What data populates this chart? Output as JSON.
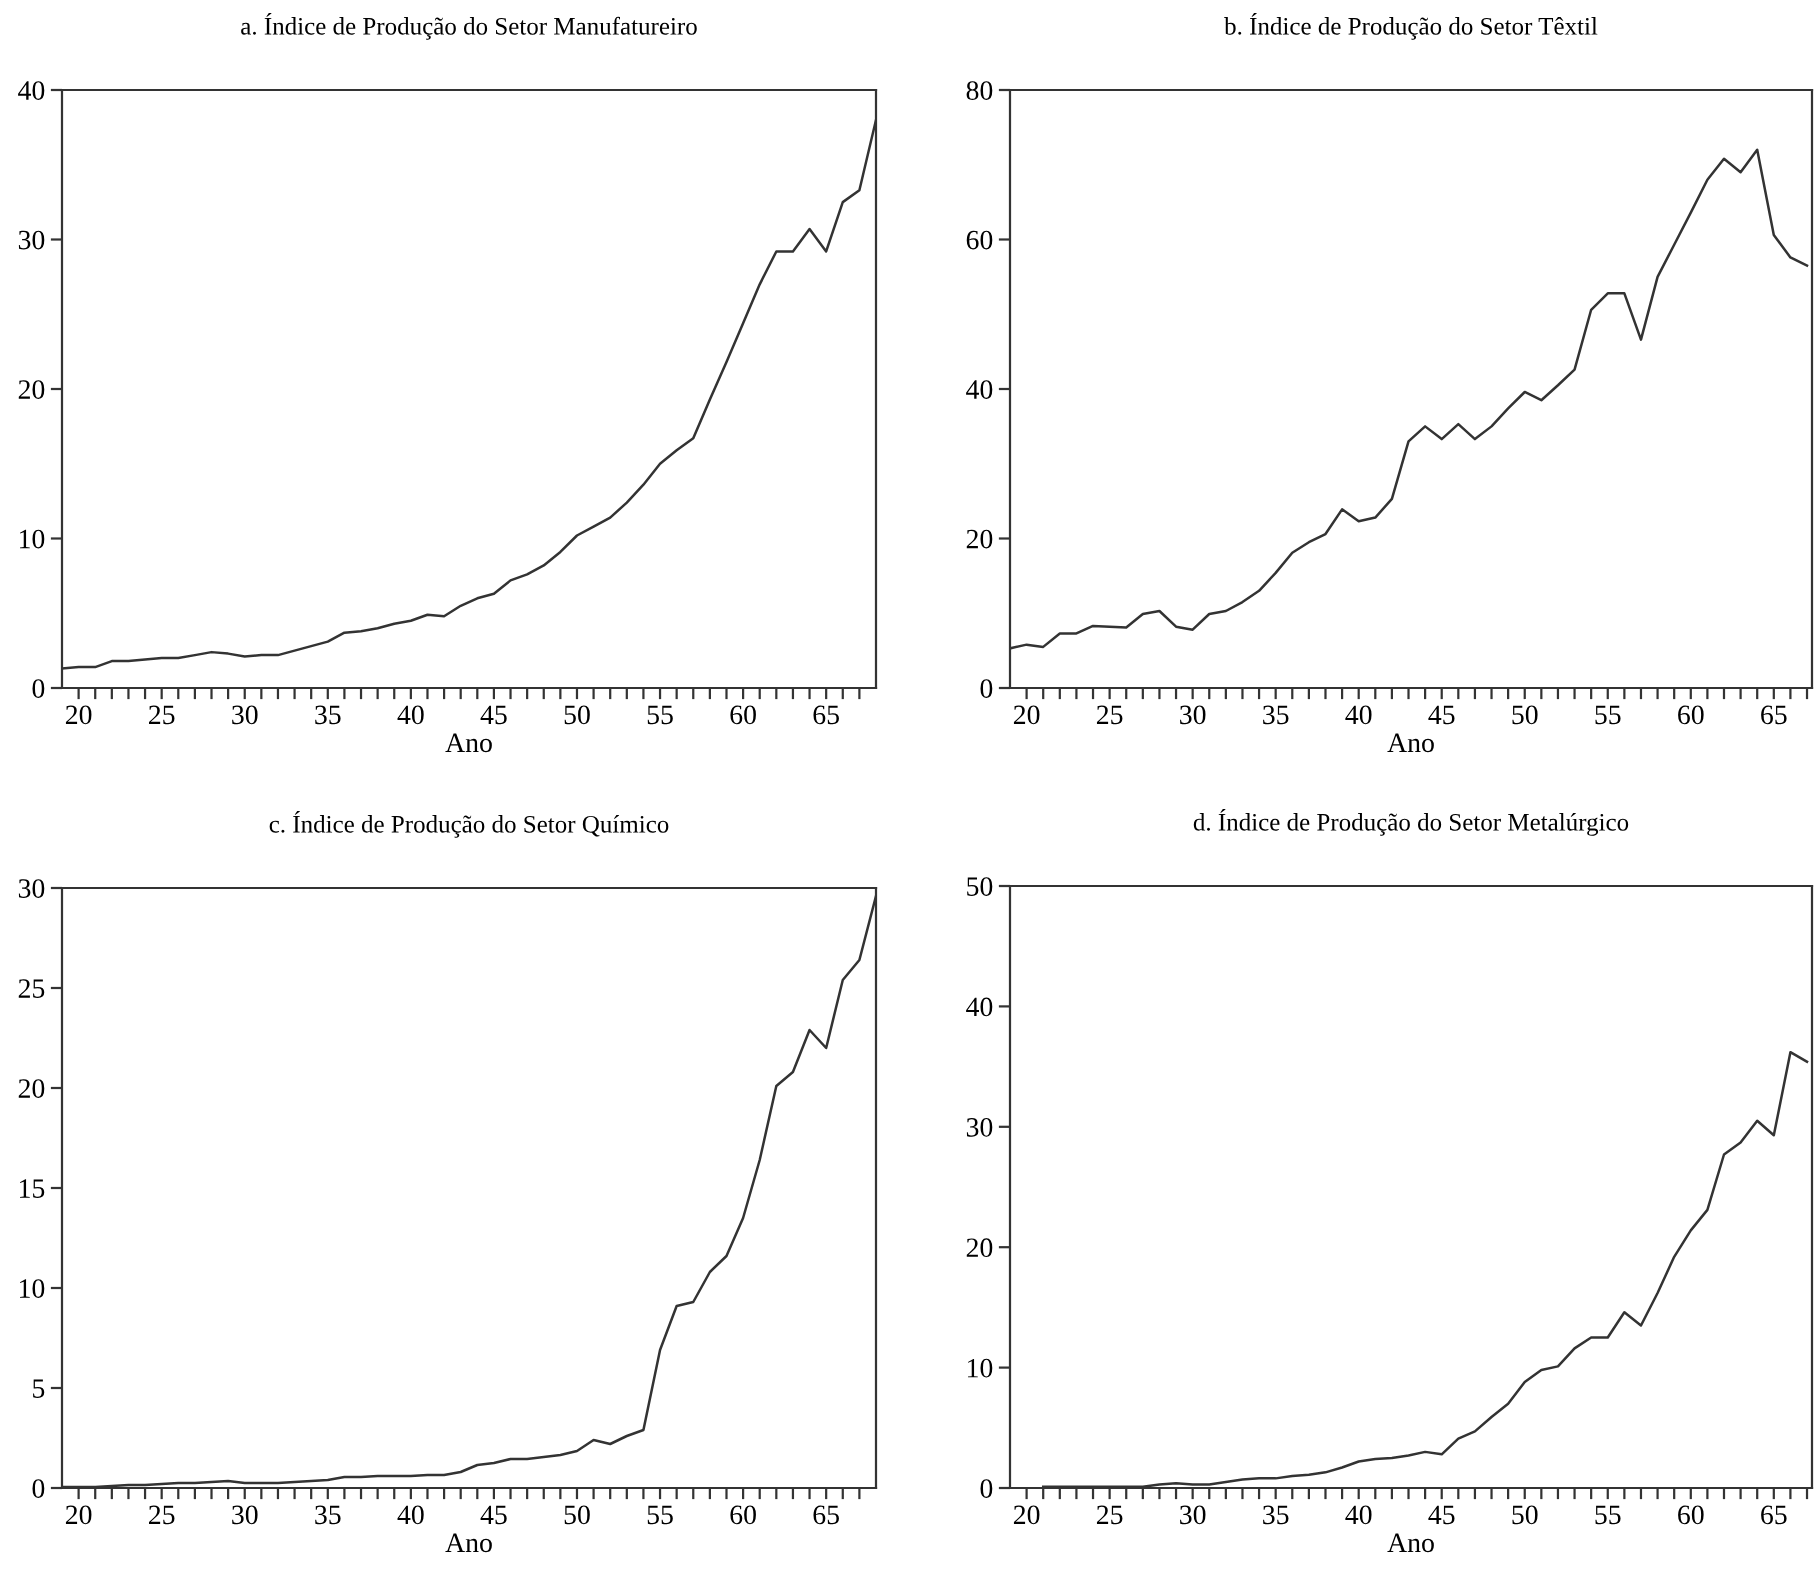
{
  "chart_data": [
    {
      "type": "line",
      "title": "a. Índice de Produção do Setor Manufatureiro",
      "xlabel": "Ano",
      "x": [
        19,
        20,
        21,
        22,
        23,
        24,
        25,
        26,
        27,
        28,
        29,
        30,
        31,
        32,
        33,
        34,
        35,
        36,
        37,
        38,
        39,
        40,
        41,
        42,
        43,
        44,
        45,
        46,
        47,
        48,
        49,
        50,
        51,
        52,
        53,
        54,
        55,
        56,
        57,
        58,
        59,
        60,
        61,
        62,
        63,
        64,
        65,
        66,
        67,
        68
      ],
      "series": [
        {
          "color": "#333333",
          "values": [
            1.3,
            1.4,
            1.4,
            1.8,
            1.8,
            1.9,
            2.0,
            2.0,
            2.2,
            2.4,
            2.3,
            2.1,
            2.2,
            2.2,
            2.5,
            2.8,
            3.1,
            3.7,
            3.8,
            4.0,
            4.3,
            4.5,
            4.9,
            4.8,
            5.5,
            6.0,
            6.3,
            7.2,
            7.6,
            8.2,
            9.1,
            10.2,
            10.8,
            11.4,
            12.4,
            13.6,
            15.0,
            15.9,
            16.7,
            19.3,
            21.8,
            24.4,
            27.0,
            29.2,
            29.2,
            30.7,
            29.2,
            32.5,
            33.3,
            38.0
          ]
        }
      ],
      "xlim": [
        19,
        68
      ],
      "ylim": [
        0,
        40
      ],
      "yticks": [
        0,
        10,
        20,
        30,
        40
      ],
      "xticks": [
        20,
        {
          "value": 21,
          "label": null
        },
        {
          "value": 22,
          "label": null
        },
        {
          "value": 23,
          "label": null
        },
        {
          "value": 24,
          "label": null
        },
        25,
        {
          "value": 26,
          "label": null
        },
        {
          "value": 27,
          "label": null
        },
        {
          "value": 28,
          "label": null
        },
        {
          "value": 29,
          "label": null
        },
        30,
        {
          "value": 31,
          "label": null
        },
        {
          "value": 32,
          "label": null
        },
        {
          "value": 33,
          "label": null
        },
        {
          "value": 34,
          "label": null
        },
        35,
        {
          "value": 36,
          "label": null
        },
        {
          "value": 37,
          "label": null
        },
        {
          "value": 38,
          "label": null
        },
        {
          "value": 39,
          "label": null
        },
        40,
        {
          "value": 41,
          "label": null
        },
        {
          "value": 42,
          "label": null
        },
        {
          "value": 43,
          "label": null
        },
        {
          "value": 44,
          "label": null
        },
        45,
        {
          "value": 46,
          "label": null
        },
        {
          "value": 47,
          "label": null
        },
        {
          "value": 48,
          "label": null
        },
        {
          "value": 49,
          "label": null
        },
        50,
        {
          "value": 51,
          "label": null
        },
        {
          "value": 52,
          "label": null
        },
        {
          "value": 53,
          "label": null
        },
        {
          "value": 54,
          "label": null
        },
        55,
        {
          "value": 56,
          "label": null
        },
        {
          "value": 57,
          "label": null
        },
        {
          "value": 58,
          "label": null
        },
        {
          "value": 59,
          "label": null
        },
        60,
        {
          "value": 61,
          "label": null
        },
        {
          "value": 62,
          "label": null
        },
        {
          "value": 63,
          "label": null
        },
        {
          "value": 64,
          "label": null
        },
        65,
        {
          "value": 66,
          "label": null
        },
        {
          "value": 67,
          "label": null
        }
      ],
      "grid": false,
      "legend": false
    },
    {
      "type": "line",
      "title": "b. Índice de Produção do Setor Têxtil",
      "xlabel": "Ano",
      "x": [
        19,
        20,
        21,
        22,
        23,
        24,
        25,
        26,
        27,
        28,
        29,
        30,
        31,
        32,
        33,
        34,
        35,
        36,
        37,
        38,
        39,
        40,
        41,
        42,
        43,
        44,
        45,
        46,
        47,
        48,
        49,
        50,
        51,
        52,
        53,
        54,
        55,
        56,
        57,
        58,
        59,
        60,
        61,
        62,
        63,
        64,
        65,
        66,
        67
      ],
      "series": [
        {
          "color": "#333333",
          "values": [
            5.3,
            5.8,
            5.5,
            7.3,
            7.3,
            8.3,
            8.2,
            8.1,
            9.9,
            10.3,
            8.2,
            7.8,
            9.9,
            10.3,
            11.5,
            13,
            15.4,
            18.1,
            19.5,
            20.6,
            23.9,
            22.3,
            22.8,
            25.3,
            33,
            35,
            33.3,
            35.3,
            33.3,
            35,
            37.4,
            39.6,
            38.5,
            40.5,
            42.6,
            50.6,
            52.8,
            52.8,
            46.6,
            55,
            59.3,
            63.6,
            68,
            70.8,
            69,
            72,
            60.6,
            57.6,
            56.5
          ]
        }
      ],
      "xlim": [
        19,
        67.3
      ],
      "ylim": [
        0,
        80
      ],
      "yticks": [
        0,
        20,
        40,
        60,
        80
      ],
      "xticks": [
        20,
        {
          "value": 21,
          "label": null
        },
        {
          "value": 22,
          "label": null
        },
        {
          "value": 23,
          "label": null
        },
        {
          "value": 24,
          "label": null
        },
        25,
        {
          "value": 26,
          "label": null
        },
        {
          "value": 27,
          "label": null
        },
        {
          "value": 28,
          "label": null
        },
        {
          "value": 29,
          "label": null
        },
        30,
        {
          "value": 31,
          "label": null
        },
        {
          "value": 32,
          "label": null
        },
        {
          "value": 33,
          "label": null
        },
        {
          "value": 34,
          "label": null
        },
        35,
        {
          "value": 36,
          "label": null
        },
        {
          "value": 37,
          "label": null
        },
        {
          "value": 38,
          "label": null
        },
        {
          "value": 39,
          "label": null
        },
        40,
        {
          "value": 41,
          "label": null
        },
        {
          "value": 42,
          "label": null
        },
        {
          "value": 43,
          "label": null
        },
        {
          "value": 44,
          "label": null
        },
        45,
        {
          "value": 46,
          "label": null
        },
        {
          "value": 47,
          "label": null
        },
        {
          "value": 48,
          "label": null
        },
        {
          "value": 49,
          "label": null
        },
        50,
        {
          "value": 51,
          "label": null
        },
        {
          "value": 52,
          "label": null
        },
        {
          "value": 53,
          "label": null
        },
        {
          "value": 54,
          "label": null
        },
        55,
        {
          "value": 56,
          "label": null
        },
        {
          "value": 57,
          "label": null
        },
        {
          "value": 58,
          "label": null
        },
        {
          "value": 59,
          "label": null
        },
        60,
        {
          "value": 61,
          "label": null
        },
        {
          "value": 62,
          "label": null
        },
        {
          "value": 63,
          "label": null
        },
        {
          "value": 64,
          "label": null
        },
        65,
        {
          "value": 66,
          "label": null
        },
        {
          "value": 67,
          "label": null
        }
      ],
      "grid": false,
      "legend": false
    },
    {
      "type": "line",
      "title": "c. Índice de Produção do Setor Químico",
      "xlabel": "Ano",
      "x": [
        19,
        20,
        21,
        22,
        23,
        24,
        25,
        26,
        27,
        28,
        29,
        30,
        31,
        32,
        33,
        34,
        35,
        36,
        37,
        38,
        39,
        40,
        41,
        42,
        43,
        44,
        45,
        46,
        47,
        48,
        49,
        50,
        51,
        52,
        53,
        54,
        55,
        56,
        57,
        58,
        59,
        60,
        61,
        62,
        63,
        64,
        65,
        66,
        67,
        68
      ],
      "series": [
        {
          "color": "#333333",
          "values": [
            0.05,
            0.05,
            0.05,
            0.1,
            0.15,
            0.15,
            0.2,
            0.25,
            0.25,
            0.3,
            0.35,
            0.25,
            0.25,
            0.25,
            0.3,
            0.35,
            0.4,
            0.55,
            0.55,
            0.6,
            0.6,
            0.6,
            0.65,
            0.65,
            0.8,
            1.15,
            1.25,
            1.45,
            1.45,
            1.55,
            1.65,
            1.85,
            2.4,
            2.2,
            2.6,
            2.9,
            6.9,
            9.1,
            9.3,
            10.8,
            11.6,
            13.5,
            16.4,
            20.1,
            20.8,
            22.9,
            22.0,
            25.4,
            26.4,
            29.6
          ]
        }
      ],
      "xlim": [
        19,
        68
      ],
      "ylim": [
        0,
        30
      ],
      "yticks": [
        0,
        5,
        10,
        15,
        20,
        25,
        30
      ],
      "xticks": [
        20,
        {
          "value": 21,
          "label": null
        },
        {
          "value": 22,
          "label": null
        },
        {
          "value": 23,
          "label": null
        },
        {
          "value": 24,
          "label": null
        },
        25,
        {
          "value": 26,
          "label": null
        },
        {
          "value": 27,
          "label": null
        },
        {
          "value": 28,
          "label": null
        },
        {
          "value": 29,
          "label": null
        },
        30,
        {
          "value": 31,
          "label": null
        },
        {
          "value": 32,
          "label": null
        },
        {
          "value": 33,
          "label": null
        },
        {
          "value": 34,
          "label": null
        },
        35,
        {
          "value": 36,
          "label": null
        },
        {
          "value": 37,
          "label": null
        },
        {
          "value": 38,
          "label": null
        },
        {
          "value": 39,
          "label": null
        },
        40,
        {
          "value": 41,
          "label": null
        },
        {
          "value": 42,
          "label": null
        },
        {
          "value": 43,
          "label": null
        },
        {
          "value": 44,
          "label": null
        },
        45,
        {
          "value": 46,
          "label": null
        },
        {
          "value": 47,
          "label": null
        },
        {
          "value": 48,
          "label": null
        },
        {
          "value": 49,
          "label": null
        },
        50,
        {
          "value": 51,
          "label": null
        },
        {
          "value": 52,
          "label": null
        },
        {
          "value": 53,
          "label": null
        },
        {
          "value": 54,
          "label": null
        },
        55,
        {
          "value": 56,
          "label": null
        },
        {
          "value": 57,
          "label": null
        },
        {
          "value": 58,
          "label": null
        },
        {
          "value": 59,
          "label": null
        },
        60,
        {
          "value": 61,
          "label": null
        },
        {
          "value": 62,
          "label": null
        },
        {
          "value": 63,
          "label": null
        },
        {
          "value": 64,
          "label": null
        },
        65,
        {
          "value": 66,
          "label": null
        },
        {
          "value": 67,
          "label": null
        }
      ],
      "grid": false,
      "legend": false
    },
    {
      "type": "line",
      "title": "d. Índice de Produção do Setor Metalúrgico",
      "xlabel": "Ano",
      "x": [
        21,
        22,
        23,
        24,
        25,
        26,
        27,
        28,
        29,
        30,
        31,
        32,
        33,
        34,
        35,
        36,
        37,
        38,
        39,
        40,
        41,
        42,
        43,
        44,
        45,
        46,
        47,
        48,
        49,
        50,
        51,
        52,
        53,
        54,
        55,
        56,
        57,
        58,
        59,
        60,
        61,
        62,
        63,
        64,
        65,
        66,
        67
      ],
      "series": [
        {
          "color": "#333333",
          "values": [
            0.1,
            0.1,
            0.1,
            0.1,
            0.1,
            0.1,
            0.1,
            0.3,
            0.4,
            0.3,
            0.3,
            0.5,
            0.7,
            0.8,
            0.8,
            1.0,
            1.1,
            1.3,
            1.7,
            2.2,
            2.4,
            2.5,
            2.7,
            3.0,
            2.8,
            4.1,
            4.7,
            5.9,
            7.0,
            8.8,
            9.8,
            10.1,
            11.6,
            12.5,
            12.5,
            14.6,
            13.5,
            16.2,
            19.2,
            21.4,
            23.1,
            27.7,
            28.7,
            30.5,
            29.3,
            36.2,
            35.4
          ]
        }
      ],
      "xlim": [
        19,
        67.3
      ],
      "ylim": [
        0,
        50
      ],
      "yticks": [
        0,
        10,
        20,
        30,
        40,
        50
      ],
      "xticks": [
        20,
        {
          "value": 21,
          "label": null
        },
        {
          "value": 22,
          "label": null
        },
        {
          "value": 23,
          "label": null
        },
        {
          "value": 24,
          "label": null
        },
        25,
        {
          "value": 26,
          "label": null
        },
        {
          "value": 27,
          "label": null
        },
        {
          "value": 28,
          "label": null
        },
        {
          "value": 29,
          "label": null
        },
        30,
        {
          "value": 31,
          "label": null
        },
        {
          "value": 32,
          "label": null
        },
        {
          "value": 33,
          "label": null
        },
        {
          "value": 34,
          "label": null
        },
        35,
        {
          "value": 36,
          "label": null
        },
        {
          "value": 37,
          "label": null
        },
        {
          "value": 38,
          "label": null
        },
        {
          "value": 39,
          "label": null
        },
        40,
        {
          "value": 41,
          "label": null
        },
        {
          "value": 42,
          "label": null
        },
        {
          "value": 43,
          "label": null
        },
        {
          "value": 44,
          "label": null
        },
        45,
        {
          "value": 46,
          "label": null
        },
        {
          "value": 47,
          "label": null
        },
        {
          "value": 48,
          "label": null
        },
        {
          "value": 49,
          "label": null
        },
        50,
        {
          "value": 51,
          "label": null
        },
        {
          "value": 52,
          "label": null
        },
        {
          "value": 53,
          "label": null
        },
        {
          "value": 54,
          "label": null
        },
        55,
        {
          "value": 56,
          "label": null
        },
        {
          "value": 57,
          "label": null
        },
        {
          "value": 58,
          "label": null
        },
        {
          "value": 59,
          "label": null
        },
        60,
        {
          "value": 61,
          "label": null
        },
        {
          "value": 62,
          "label": null
        },
        {
          "value": 63,
          "label": null
        },
        {
          "value": 64,
          "label": null
        },
        65,
        {
          "value": 66,
          "label": null
        },
        {
          "value": 67,
          "label": null
        }
      ],
      "grid": false,
      "legend": false
    }
  ]
}
